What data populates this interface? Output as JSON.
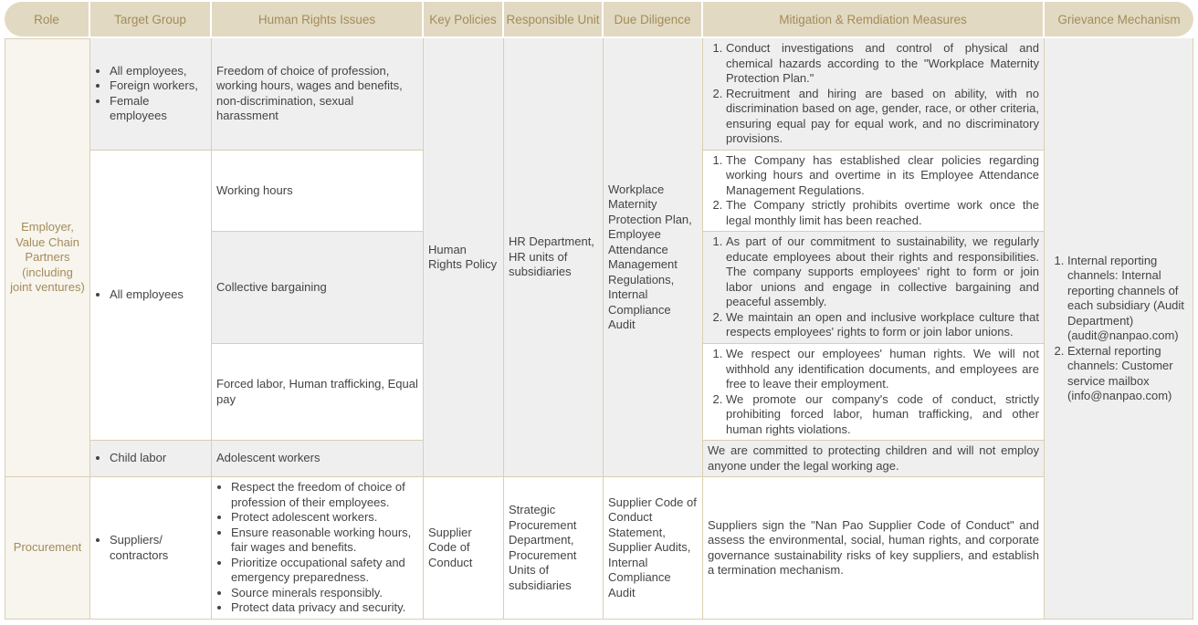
{
  "headers": [
    "Role",
    "Target Group",
    "Human Rights Issues",
    "Key Policies",
    "Responsible Unit",
    "Due Diligence",
    "Mitigation & Remdiation Measures",
    "Grievance Mechanism"
  ],
  "colors": {
    "header_bg": "#e2d9c2",
    "header_text": "#a38c5a",
    "role_bg": "#f8f5ee",
    "row_gray": "#efefef",
    "border": "#d9cfb3"
  },
  "employer": {
    "role": "Employer, Value Chain Partners (including joint ventures)",
    "key_policy": "Human Rights Policy",
    "responsible_unit": "HR Department, HR units of subsidiaries",
    "due_diligence": "Workplace Maternity Protection Plan, Employee Attendance Management Regulations, Internal Compliance Audit",
    "grievance": [
      "Internal reporting channels: Internal reporting channels of each subsidiary (Audit Department) (audit@nanpao.com)",
      "External reporting channels: Customer service mailbox (info@nanpao.com)"
    ],
    "rows": [
      {
        "target": [
          "All employees,",
          "Foreign workers,",
          "Female employees"
        ],
        "issue": "Freedom of choice of profession, working hours, wages and benefits, non-discrimination, sexual harassment",
        "mitigation": [
          "Conduct investigations and control of physical and chemical hazards according to the \"Workplace Maternity Protection Plan.\"",
          "Recruitment and hiring are based on ability, with no discrimination based on age, gender, race, or other criteria, ensuring equal pay for equal work, and no discriminatory provisions."
        ]
      },
      {
        "issue": "Working hours",
        "mitigation": [
          "The Company has established clear policies regarding working hours and overtime in its Employee Attendance Management Regulations.",
          "The Company strictly prohibits overtime work once the legal monthly limit has been reached."
        ]
      },
      {
        "issue": "Collective bargaining",
        "mitigation": [
          "As part of our commitment to sustainability, we regularly educate employees about their rights and responsibilities. The company supports employees' right to form or join labor unions and engage in collective bargaining and peaceful assembly.",
          "We maintain an open and inclusive workplace culture that respects employees' rights to form or join labor unions."
        ]
      },
      {
        "issue": "Forced labor, Human trafficking, Equal pay",
        "mitigation": [
          "We respect our employees' human rights. We will not withhold any identification documents, and employees are free to leave their employment.",
          "We promote our company's code of conduct, strictly prohibiting forced labor, human trafficking, and other human rights violations."
        ]
      },
      {
        "target": [
          "Child labor"
        ],
        "issue": "Adolescent workers",
        "mitigation_text": "We are committed to protecting children and will not employ anyone under the legal working age."
      }
    ],
    "shared_target": [
      "All employees"
    ]
  },
  "procurement": {
    "role": "Procurement",
    "target": [
      "Suppliers/ contractors"
    ],
    "issues": [
      "Respect the freedom of choice of profession of their employees.",
      "Protect adolescent workers.",
      "Ensure reasonable working hours, fair wages and benefits.",
      "Prioritize occupational safety and emergency preparedness.",
      "Source minerals responsibly.",
      "Protect data privacy and security."
    ],
    "key_policy": "Supplier Code of Conduct",
    "responsible_unit": "Strategic Procurement Department, Procurement Units of subsidiaries",
    "due_diligence": "Supplier Code of Conduct Statement, Supplier Audits, Internal Compliance Audit",
    "mitigation": "Suppliers sign the \"Nan Pao Supplier Code of Conduct\" and assess the environmental, social, human rights, and corporate governance sustainability risks of key suppliers, and establish a termination mechanism."
  }
}
